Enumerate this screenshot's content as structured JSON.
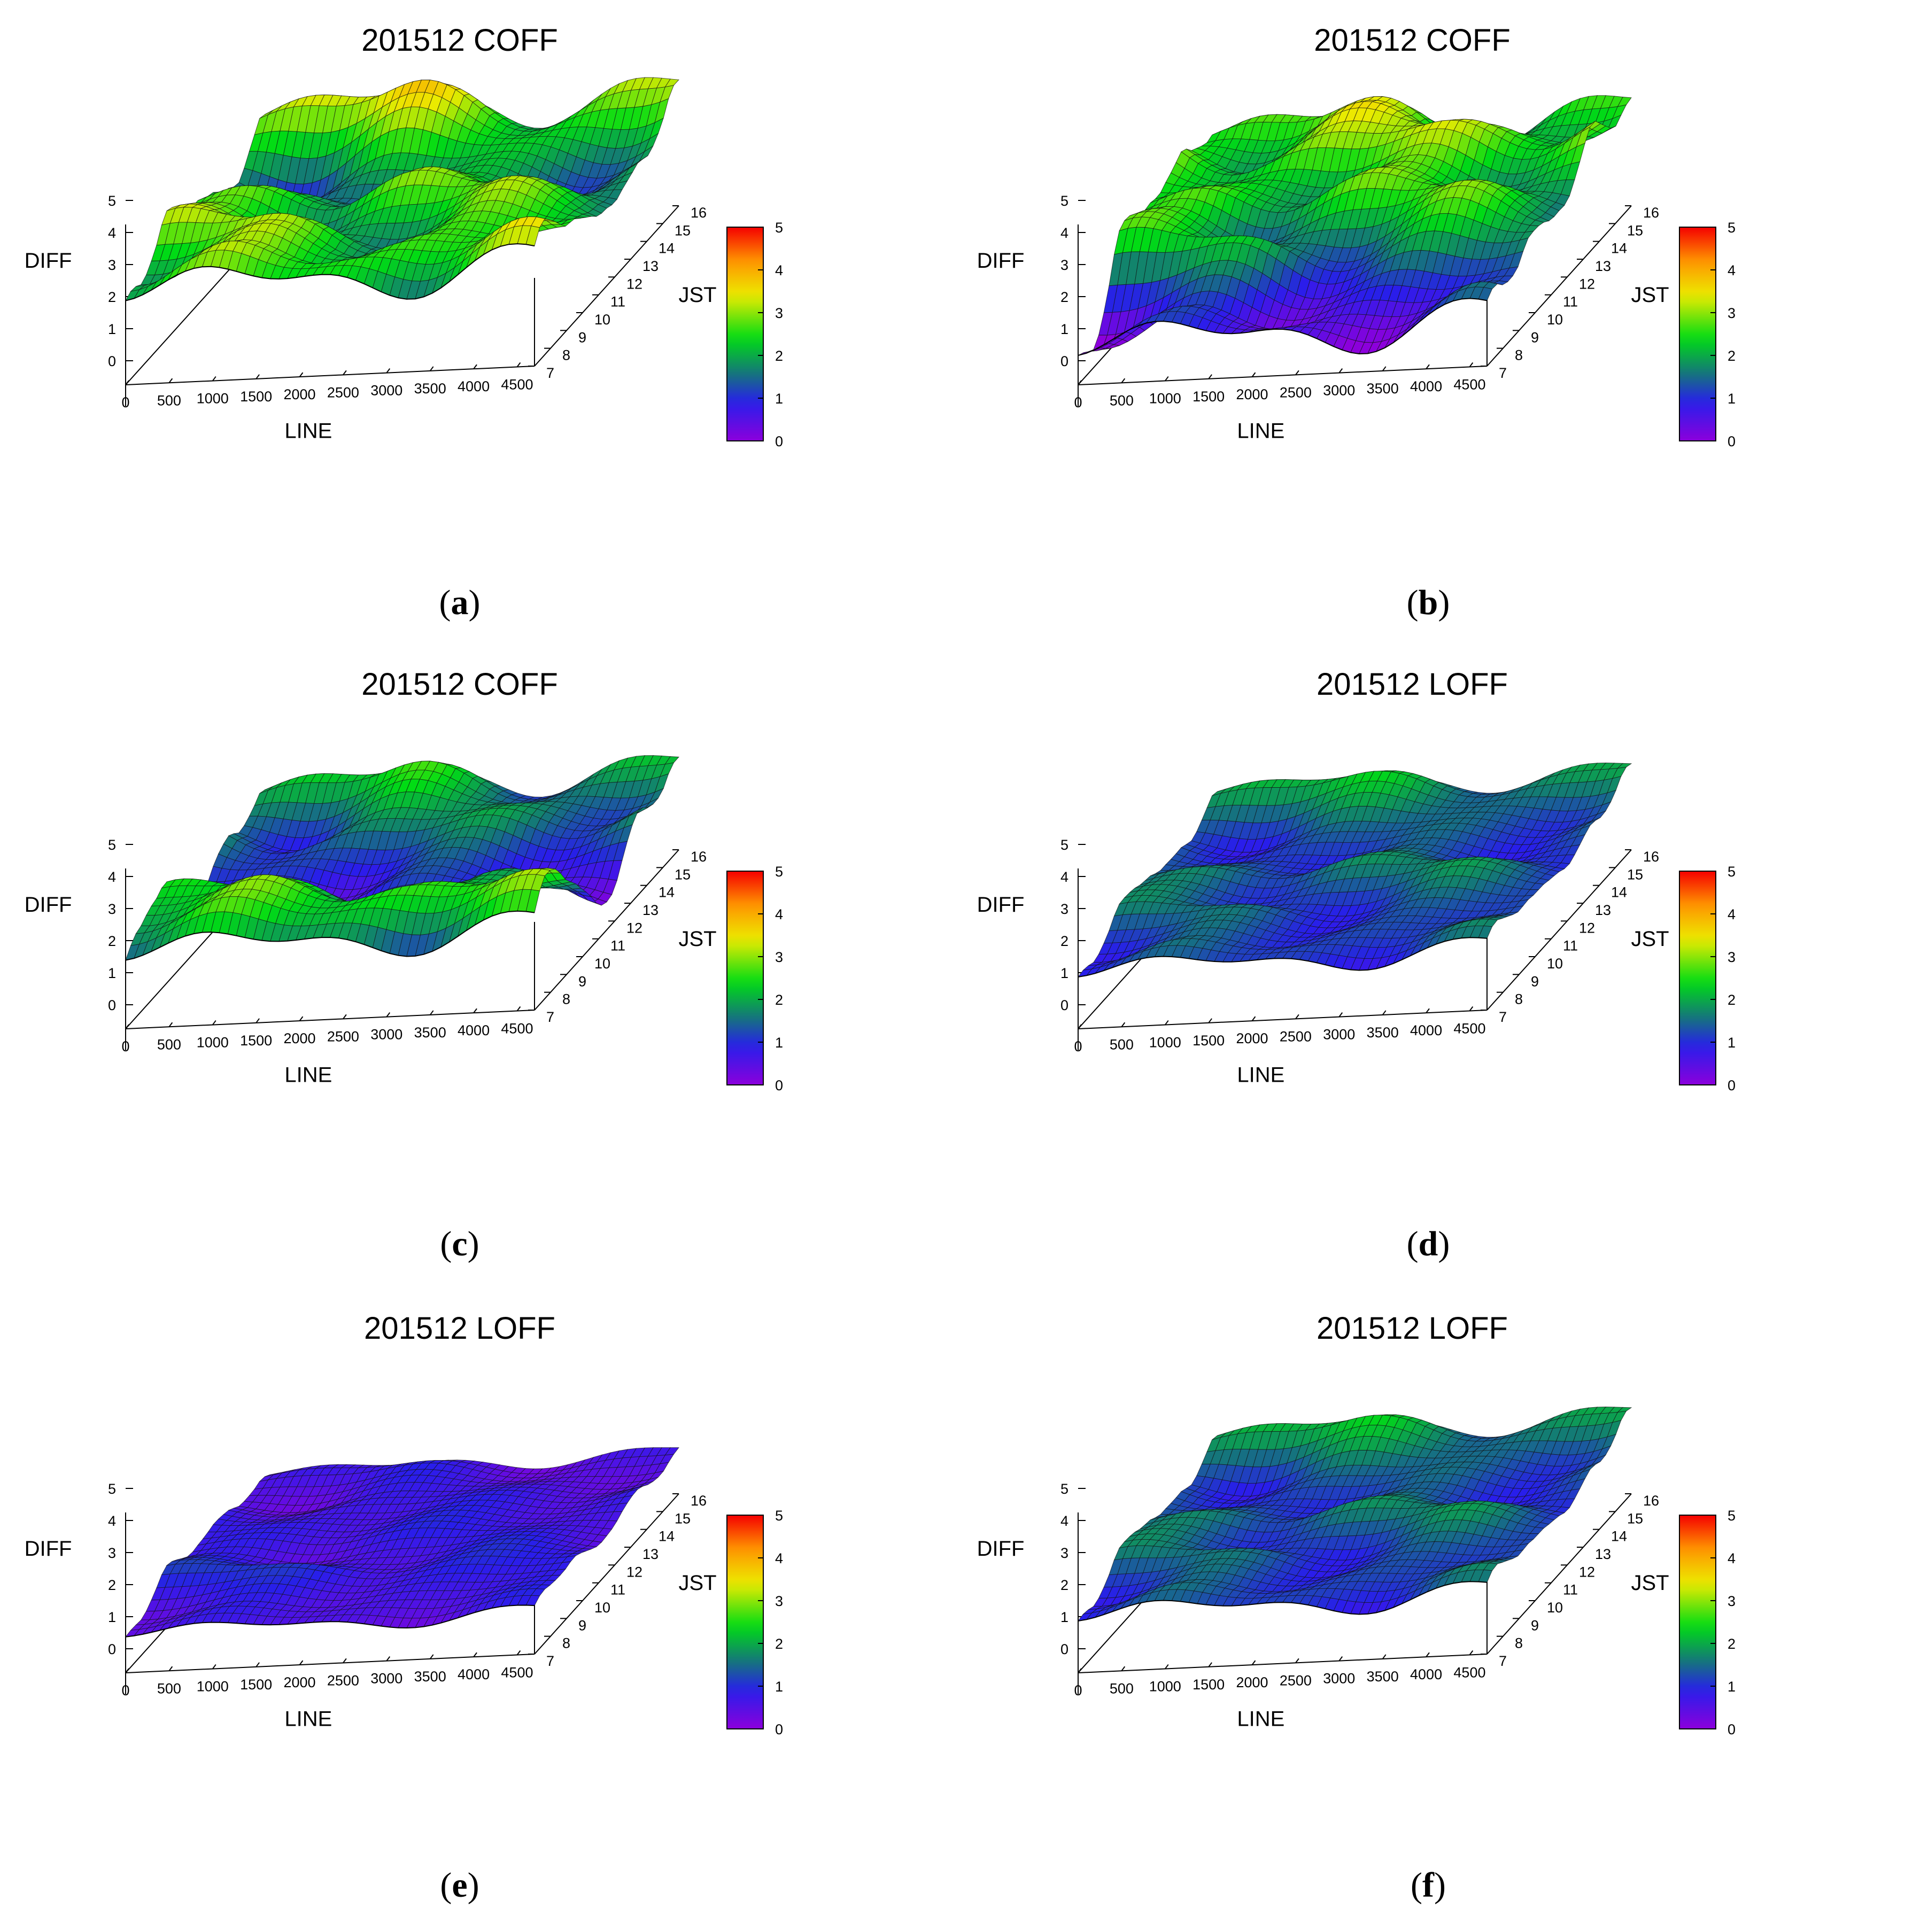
{
  "chart_data": [
    {
      "id": "a",
      "caption_letter": "a",
      "title": "201512 COFF",
      "type": "surface3d",
      "xlabel": "LINE",
      "ylabel": "JST",
      "zlabel": "DIFF",
      "x_ticks": [
        "0",
        "500",
        "1000",
        "1500",
        "2000",
        "2500",
        "3000",
        "3500",
        "4000",
        "4500"
      ],
      "y_ticks": [
        "7",
        "8",
        "9",
        "10",
        "11",
        "12",
        "13",
        "14",
        "15",
        "16"
      ],
      "z_ticks": [
        "0",
        "1",
        "2",
        "3",
        "4",
        "5"
      ],
      "colorbar_ticks": [
        "0",
        "1",
        "2",
        "3",
        "4",
        "5"
      ],
      "xlim": [
        0,
        4700
      ],
      "ylim": [
        7,
        16
      ],
      "zlim": [
        0,
        5
      ],
      "base": 2.3,
      "amp": 1.0,
      "frontDip": 0.0,
      "bands": [
        {
          "y": 8,
          "shift": 0.2
        },
        {
          "y": 13.5,
          "shift": -0.8
        },
        {
          "y": 15.5,
          "shift": 0.6
        }
      ]
    },
    {
      "id": "b",
      "caption_letter": "b",
      "title": "201512 COFF",
      "type": "surface3d",
      "xlabel": "LINE",
      "ylabel": "JST",
      "zlabel": "DIFF",
      "x_ticks": [
        "0",
        "500",
        "1000",
        "1500",
        "2000",
        "2500",
        "3000",
        "3500",
        "4000",
        "4500"
      ],
      "y_ticks": [
        "7",
        "8",
        "9",
        "10",
        "11",
        "12",
        "13",
        "14",
        "15",
        "16"
      ],
      "z_ticks": [
        "0",
        "1",
        "2",
        "3",
        "4",
        "5"
      ],
      "colorbar_ticks": [
        "0",
        "1",
        "2",
        "3",
        "4",
        "5"
      ],
      "xlim": [
        0,
        4700
      ],
      "ylim": [
        7,
        16
      ],
      "zlim": [
        0,
        5
      ],
      "base": 2.2,
      "amp": 1.0,
      "frontDip": 1.6,
      "bands": [
        {
          "y": 8.5,
          "shift": -0.3
        },
        {
          "y": 14,
          "shift": 0.6
        }
      ]
    },
    {
      "id": "c",
      "caption_letter": "c",
      "title": "201512 COFF",
      "type": "surface3d",
      "xlabel": "LINE",
      "ylabel": "JST",
      "zlabel": "DIFF",
      "x_ticks": [
        "0",
        "500",
        "1000",
        "1500",
        "2000",
        "2500",
        "3000",
        "3500",
        "4000",
        "4500"
      ],
      "y_ticks": [
        "7",
        "8",
        "9",
        "10",
        "11",
        "12",
        "13",
        "14",
        "15",
        "16"
      ],
      "z_ticks": [
        "0",
        "1",
        "2",
        "3",
        "4",
        "5"
      ],
      "colorbar_ticks": [
        "0",
        "1",
        "2",
        "3",
        "4",
        "5"
      ],
      "xlim": [
        0,
        4700
      ],
      "ylim": [
        7,
        16
      ],
      "zlim": [
        0,
        5
      ],
      "base": 1.5,
      "amp": 0.8,
      "frontDip": 0.0,
      "bands": [
        {
          "y": 8.2,
          "shift": 1.0
        },
        {
          "y": 11.5,
          "shift": -0.9
        },
        {
          "y": 15.5,
          "shift": 0.4
        }
      ]
    },
    {
      "id": "d",
      "caption_letter": "d",
      "title": "201512 LOFF",
      "type": "surface3d",
      "xlabel": "LINE",
      "ylabel": "JST",
      "zlabel": "DIFF",
      "x_ticks": [
        "0",
        "500",
        "1000",
        "1500",
        "2000",
        "2500",
        "3000",
        "3500",
        "4000",
        "4500"
      ],
      "y_ticks": [
        "7",
        "8",
        "9",
        "10",
        "11",
        "12",
        "13",
        "14",
        "15",
        "16"
      ],
      "z_ticks": [
        "0",
        "1",
        "2",
        "3",
        "4",
        "5"
      ],
      "colorbar_ticks": [
        "0",
        "1",
        "2",
        "3",
        "4",
        "5"
      ],
      "xlim": [
        0,
        4700
      ],
      "ylim": [
        7,
        16
      ],
      "zlim": [
        0,
        5
      ],
      "base": 1.15,
      "amp": 0.55,
      "frontDip": 0.0,
      "bands": [
        {
          "y": 15.5,
          "shift": 0.7
        },
        {
          "y": 11,
          "shift": 0.3
        }
      ]
    },
    {
      "id": "e",
      "caption_letter": "e",
      "title": "201512 LOFF",
      "type": "surface3d",
      "xlabel": "LINE",
      "ylabel": "JST",
      "zlabel": "DIFF",
      "x_ticks": [
        "0",
        "500",
        "1000",
        "1500",
        "2000",
        "2500",
        "3000",
        "3500",
        "4000",
        "4500"
      ],
      "y_ticks": [
        "7",
        "8",
        "9",
        "10",
        "11",
        "12",
        "13",
        "14",
        "15",
        "16"
      ],
      "z_ticks": [
        "0",
        "1",
        "2",
        "3",
        "4",
        "5"
      ],
      "colorbar_ticks": [
        "0",
        "1",
        "2",
        "3",
        "4",
        "5"
      ],
      "xlim": [
        0,
        4700
      ],
      "ylim": [
        7,
        16
      ],
      "zlim": [
        0,
        5
      ],
      "base": 0.55,
      "amp": 0.35,
      "frontDip": 0.0,
      "bands": [
        {
          "y": 9.5,
          "shift": 0.3
        },
        {
          "y": 12.5,
          "shift": 0.2
        }
      ]
    },
    {
      "id": "f",
      "caption_letter": "f",
      "title": "201512 LOFF",
      "type": "surface3d",
      "xlabel": "LINE",
      "ylabel": "JST",
      "zlabel": "DIFF",
      "x_ticks": [
        "0",
        "500",
        "1000",
        "1500",
        "2000",
        "2500",
        "3000",
        "3500",
        "4000",
        "4500"
      ],
      "y_ticks": [
        "7",
        "8",
        "9",
        "10",
        "11",
        "12",
        "13",
        "14",
        "15",
        "16"
      ],
      "z_ticks": [
        "0",
        "1",
        "2",
        "3",
        "4",
        "5"
      ],
      "colorbar_ticks": [
        "0",
        "1",
        "2",
        "3",
        "4",
        "5"
      ],
      "xlim": [
        0,
        4700
      ],
      "ylim": [
        7,
        16
      ],
      "zlim": [
        0,
        5
      ],
      "base": 1.15,
      "amp": 0.55,
      "frontDip": 0.0,
      "bands": [
        {
          "y": 15.5,
          "shift": 0.7
        },
        {
          "y": 11,
          "shift": 0.3
        }
      ]
    }
  ]
}
